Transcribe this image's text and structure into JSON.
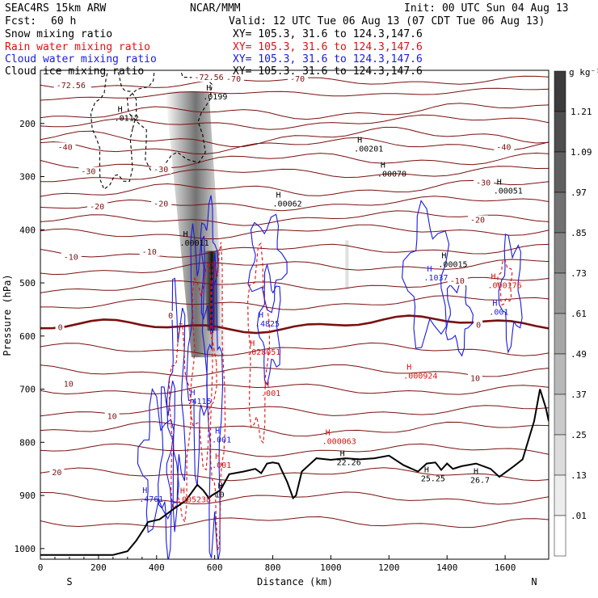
{
  "header": {
    "model": "SEAC4RS 15km ARW",
    "org": "NCAR/MMM",
    "init": "Init: 00 UTC Sun 04 Aug 13",
    "fcst_label": "Fcst:",
    "fcst_value": "60 h",
    "valid": "Valid: 12 UTC Tue 06 Aug 13 (07 CDT Tue 06 Aug 13)"
  },
  "fields": [
    {
      "name": "Snow mixing ratio",
      "xy": "XY= 105.3, 31.6 to 124.3,147.6",
      "color": "#000000"
    },
    {
      "name": "Rain water mixing ratio",
      "xy": "XY= 105.3, 31.6 to 124.3,147.6",
      "color": "#e01010"
    },
    {
      "name": "Cloud water mixing ratio",
      "xy": "XY= 105.3, 31.6 to 124.3,147.6",
      "color": "#1a1ae0"
    },
    {
      "name": "Cloud ice mixing ratio",
      "xy": "XY= 105.3, 31.6 to 124.3,147.6",
      "color": "#000000"
    }
  ],
  "chart_data": {
    "type": "contour",
    "xlabel": "Distance (km)",
    "ylabel": "Pressure (hPa)",
    "x_ticks": [
      0,
      200,
      400,
      600,
      800,
      1000,
      1200,
      1400,
      1600
    ],
    "y_ticks": [
      200,
      300,
      400,
      500,
      600,
      700,
      800,
      900,
      1000
    ],
    "xlim": [
      0,
      1750
    ],
    "ylim": [
      100,
      1020
    ],
    "x_start_label": "S",
    "x_end_label": "N",
    "colorbar": {
      "unit": "g kg⁻¹",
      "labels": [
        "1.21",
        "1.09",
        ".97",
        ".85",
        ".73",
        ".61",
        ".49",
        ".37",
        ".25",
        ".13",
        ".01"
      ]
    },
    "temperature_contours": [
      {
        "label": "-72.56",
        "x": 55,
        "p": 132
      },
      {
        "label": "-72.56",
        "x": 530,
        "p": 117
      },
      {
        "label": "-70",
        "x": 640,
        "p": 120
      },
      {
        "label": "-70",
        "x": 860,
        "p": 120
      },
      {
        "label": "-40",
        "x": 60,
        "p": 248
      },
      {
        "label": "-40",
        "x": 1570,
        "p": 248
      },
      {
        "label": "-30",
        "x": 140,
        "p": 294
      },
      {
        "label": "-30",
        "x": 390,
        "p": 290
      },
      {
        "label": "-30",
        "x": 1500,
        "p": 315
      },
      {
        "label": "-20",
        "x": 170,
        "p": 360
      },
      {
        "label": "-20",
        "x": 390,
        "p": 355
      },
      {
        "label": "-20",
        "x": 1480,
        "p": 385
      },
      {
        "label": "-10",
        "x": 80,
        "p": 455
      },
      {
        "label": "-10",
        "x": 350,
        "p": 445
      },
      {
        "label": "-10",
        "x": 1410,
        "p": 500
      },
      {
        "label": "0",
        "x": 60,
        "p": 587
      },
      {
        "label": "0",
        "x": 440,
        "p": 565
      },
      {
        "label": "0",
        "x": 1500,
        "p": 583
      },
      {
        "label": "10",
        "x": 80,
        "p": 694
      },
      {
        "label": "10",
        "x": 230,
        "p": 755
      },
      {
        "label": "10",
        "x": 1480,
        "p": 683
      },
      {
        "label": "20",
        "x": 40,
        "p": 860
      }
    ],
    "maxima_labels": [
      {
        "series": "Cloud ice mixing ratio",
        "label": ".0199",
        "x": 560,
        "p": 155
      },
      {
        "series": "Cloud ice mixing ratio",
        "label": ".0112",
        "x": 255,
        "p": 195
      },
      {
        "series": "Cloud ice mixing ratio",
        "label": ".00201",
        "x": 1080,
        "p": 253
      },
      {
        "series": "Cloud ice mixing ratio",
        "label": ".00070",
        "x": 1160,
        "p": 300
      },
      {
        "series": "Cloud ice mixing ratio",
        "label": ".00051",
        "x": 1560,
        "p": 332
      },
      {
        "series": "Cloud ice mixing ratio",
        "label": ".00062",
        "x": 800,
        "p": 356
      },
      {
        "series": "Cloud ice mixing ratio",
        "label": ".00011",
        "x": 480,
        "p": 430
      },
      {
        "series": "Cloud ice mixing ratio",
        "label": ".00015",
        "x": 1370,
        "p": 470
      },
      {
        "series": "Cloud water mixing ratio",
        "label": ".1037",
        "x": 1320,
        "p": 495
      },
      {
        "series": "Rain water mixing ratio",
        "label": ".000176",
        "x": 1540,
        "p": 510
      },
      {
        "series": "Cloud water mixing ratio",
        "label": ".001",
        "x": 1545,
        "p": 560
      },
      {
        "series": "Cloud water mixing ratio",
        "label": ".4825",
        "x": 740,
        "p": 582
      },
      {
        "series": "Rain water mixing ratio",
        "label": ".028051",
        "x": 710,
        "p": 635
      },
      {
        "series": "Rain water mixing ratio",
        "label": ".000924",
        "x": 1250,
        "p": 680
      },
      {
        "series": "Rain water mixing ratio",
        "label": ".001",
        "x": 760,
        "p": 713
      },
      {
        "series": "Cloud water mixing ratio",
        "label": ".4115",
        "x": 505,
        "p": 728
      },
      {
        "series": "Cloud water mixing ratio",
        "label": ".001",
        "x": 590,
        "p": 800
      },
      {
        "series": "Rain water mixing ratio",
        "label": ".001",
        "x": 590,
        "p": 848
      },
      {
        "series": "Rain water mixing ratio",
        "label": ".000063",
        "x": 970,
        "p": 803
      },
      {
        "series": "Temperature",
        "label": "22.26",
        "x": 1020,
        "p": 843
      },
      {
        "series": "Temperature",
        "label": "25.25",
        "x": 1310,
        "p": 873
      },
      {
        "series": "Temperature",
        "label": "26.7",
        "x": 1480,
        "p": 876
      },
      {
        "series": "Cloud water mixing ratio",
        "label": ".4761",
        "x": 340,
        "p": 912
      },
      {
        "series": "Rain water mixing ratio",
        "label": ".005238",
        "x": 470,
        "p": 913
      },
      {
        "series": "Temperature",
        "label": "10",
        "x": 600,
        "p": 904
      }
    ],
    "terrain": {
      "x": [
        0,
        250,
        300,
        330,
        360,
        370,
        410,
        460,
        500,
        540,
        560,
        580,
        590,
        620,
        650,
        700,
        740,
        760,
        780,
        800,
        820,
        850,
        870,
        880,
        900,
        930,
        950,
        1000,
        1050,
        1100,
        1150,
        1200,
        1250,
        1300,
        1330,
        1360,
        1380,
        1400,
        1420,
        1450,
        1500,
        1550,
        1580,
        1630,
        1660,
        1700,
        1720,
        1740,
        1750
      ],
      "p": [
        1012,
        1012,
        1005,
        985,
        960,
        950,
        945,
        925,
        910,
        880,
        890,
        905,
        900,
        890,
        860,
        855,
        850,
        858,
        840,
        838,
        840,
        875,
        905,
        900,
        855,
        840,
        830,
        833,
        830,
        832,
        830,
        825,
        843,
        855,
        840,
        838,
        852,
        840,
        850,
        845,
        840,
        850,
        865,
        845,
        832,
        760,
        700,
        735,
        760
      ]
    }
  }
}
